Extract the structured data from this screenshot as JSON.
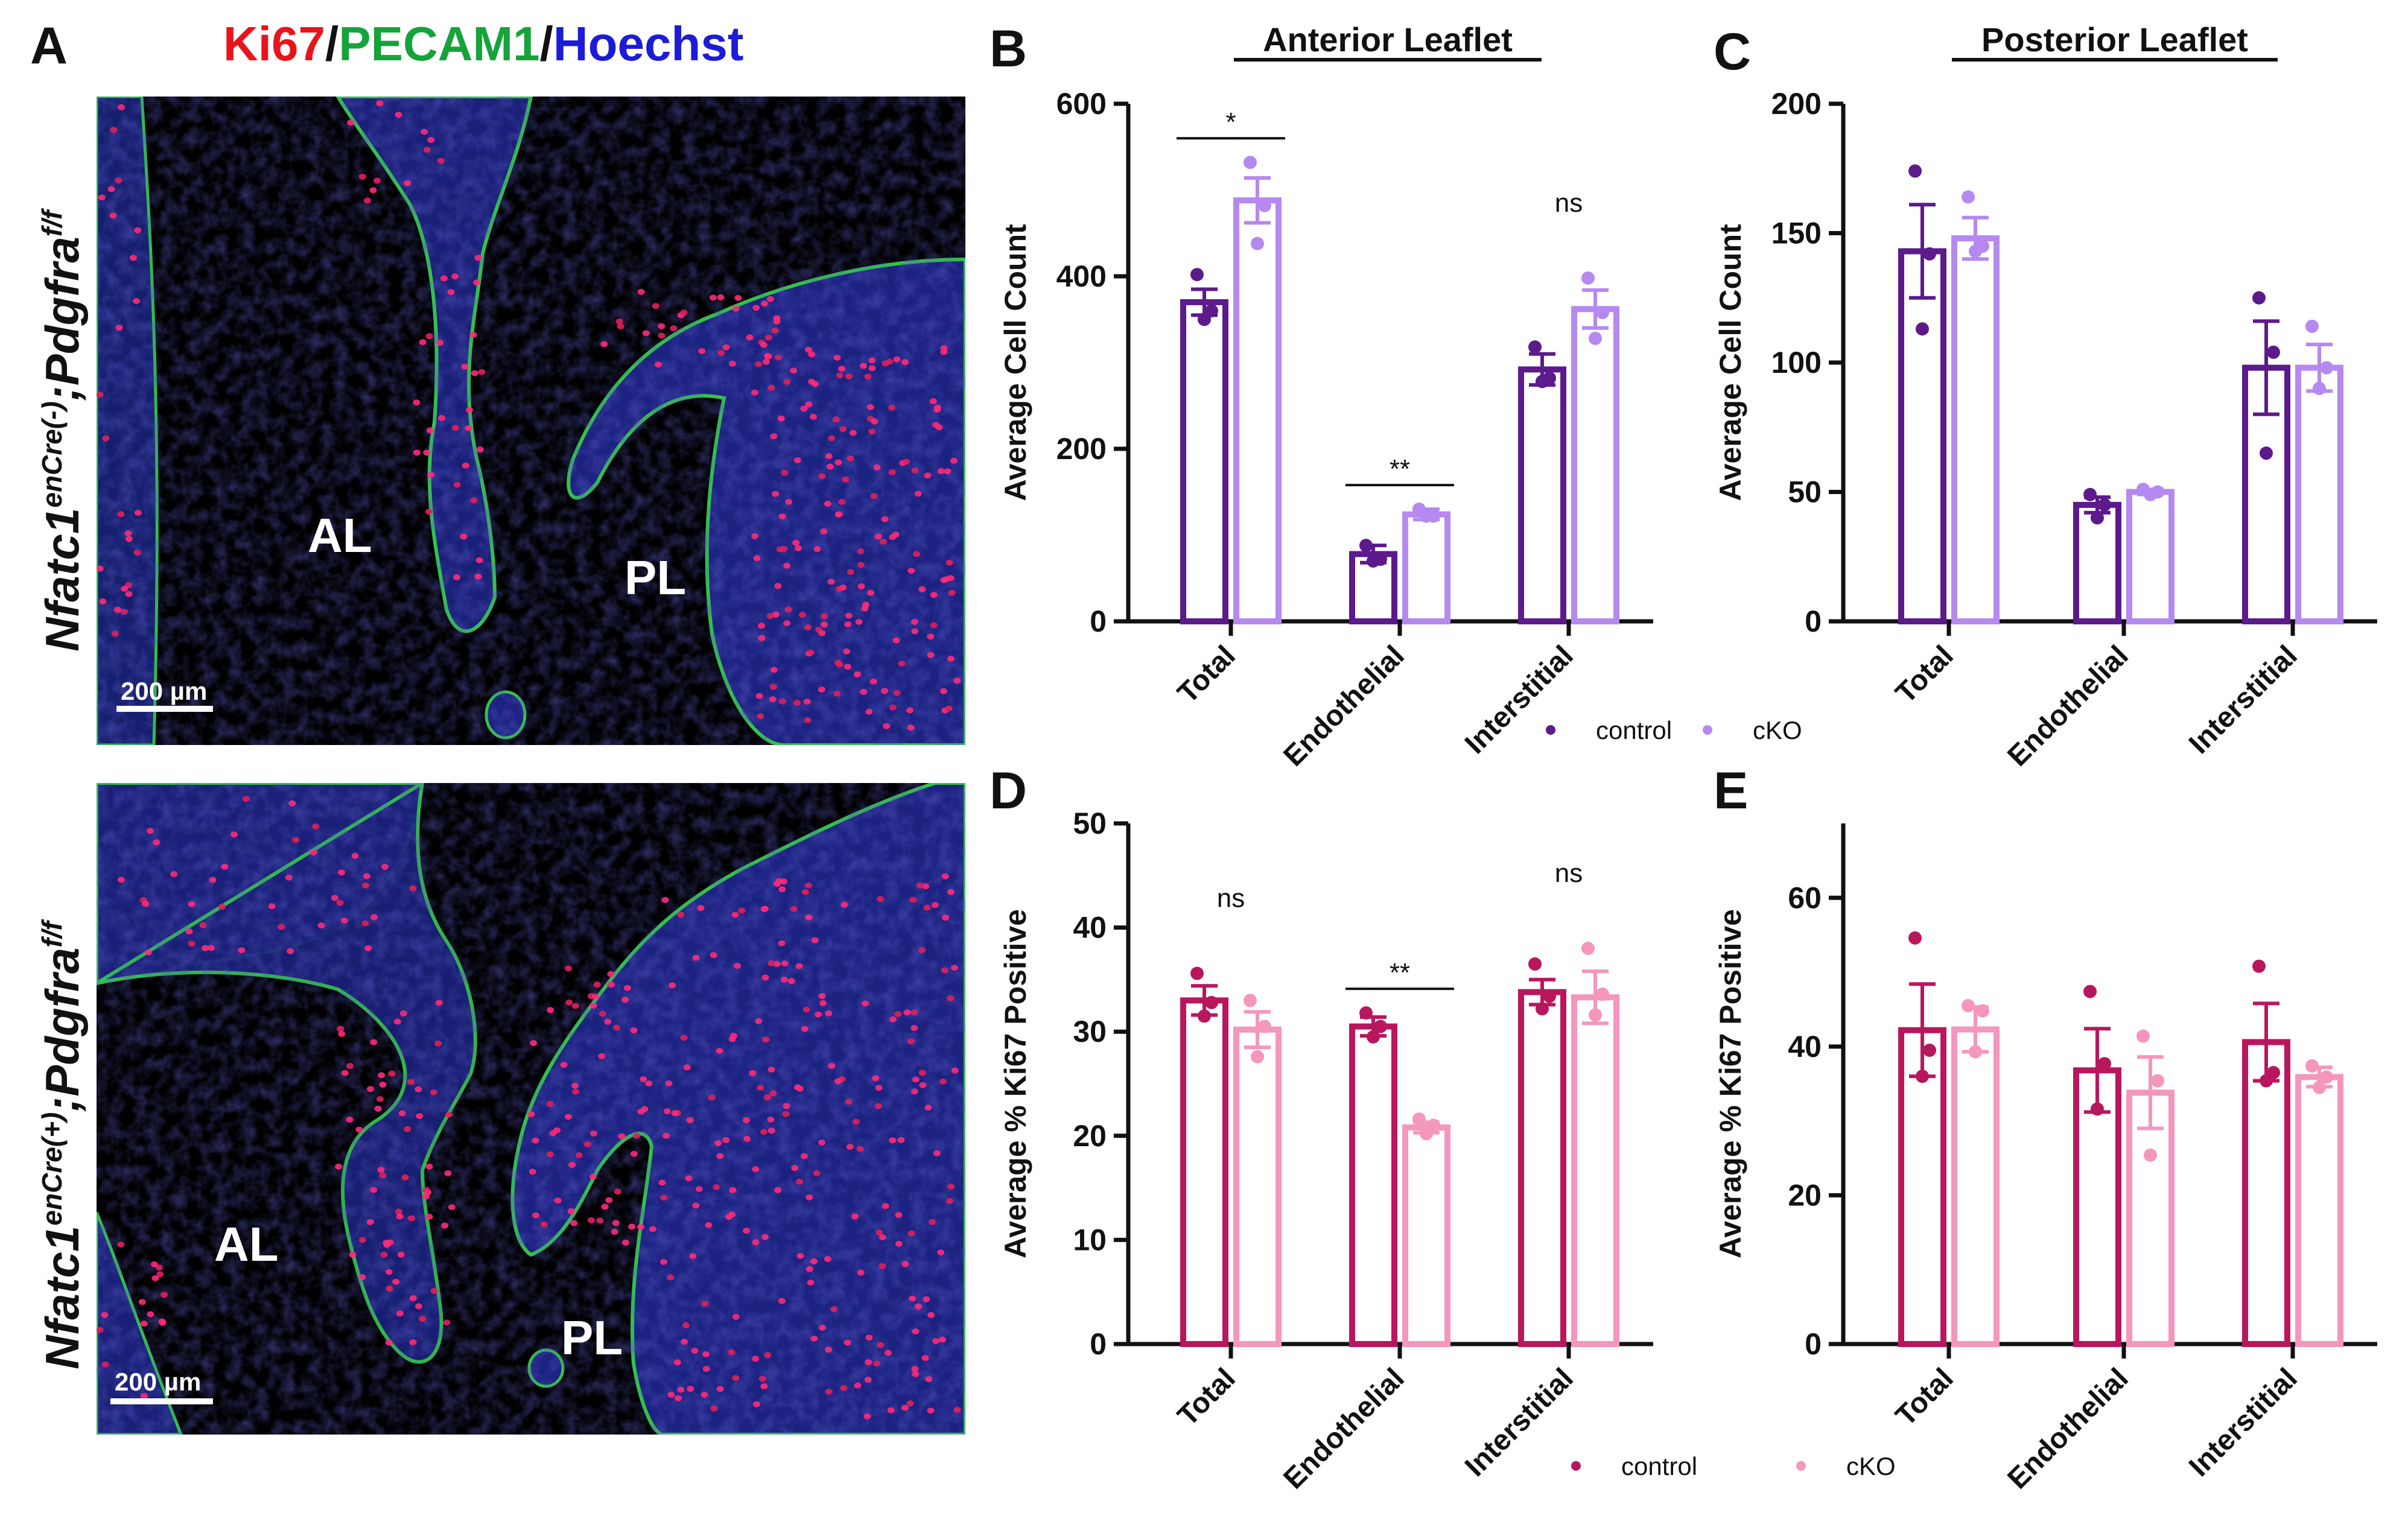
{
  "panel_a": {
    "letter": "A",
    "stain_ki67": "Ki67",
    "stain_sep1": "/",
    "stain_pecam1": "PECAM1",
    "stain_sep2": "/",
    "stain_hoechst": "Hoechst",
    "stain_colors": {
      "ki67": "#e8141c",
      "pecam1": "#16a33a",
      "hoechst": "#1c1cd8"
    },
    "top_image": {
      "genotype_base": "Nfatc1",
      "genotype_sup": "enCre(-)",
      "genotype_mid": ";Pdgfra",
      "genotype_sup2": "f/f",
      "label_al": "AL",
      "label_pl": "PL",
      "scale_bar": "200 µm"
    },
    "bottom_image": {
      "genotype_base": "Nfatc1",
      "genotype_sup": "enCre(+)",
      "genotype_mid": ";Pdgfra",
      "genotype_sup2": "f/f",
      "label_al": "AL",
      "label_pl": "PL",
      "scale_bar": "200 µm"
    }
  },
  "chart_data": [
    {
      "panel": "B",
      "type": "bar",
      "title": "Anterior Leaflet",
      "ylabel": "Average Cell Count",
      "ylim": [
        0,
        600
      ],
      "yticks": [
        0,
        200,
        400,
        600
      ],
      "categories": [
        "Total",
        "Endothelial",
        "Interstitial"
      ],
      "series": [
        {
          "name": "control",
          "color": "#5c1a8a",
          "values": [
            370,
            78,
            292
          ],
          "sem": [
            15,
            10,
            18
          ],
          "points": [
            [
              402,
              360,
              350
            ],
            [
              88,
              72,
              70
            ],
            [
              318,
              282,
              278
            ]
          ]
        },
        {
          "name": "cKO",
          "color": "#b589f0",
          "values": [
            488,
            124,
            362
          ],
          "sem": [
            26,
            6,
            22
          ],
          "points": [
            [
              532,
              482,
              438
            ],
            [
              130,
              122,
              122
            ],
            [
              398,
              358,
              328
            ]
          ]
        }
      ],
      "significance": [
        {
          "category": "Total",
          "label": "*",
          "bracket": true
        },
        {
          "category": "Endothelial",
          "label": "**",
          "bracket": true
        },
        {
          "category": "Interstitial",
          "label": "ns",
          "bracket": false
        }
      ],
      "legend": {
        "entries": [
          "control",
          "cKO"
        ],
        "placement": "bottom"
      }
    },
    {
      "panel": "C",
      "type": "bar",
      "title": "Posterior Leaflet",
      "ylabel": "Average Cell Count",
      "ylim": [
        0,
        200
      ],
      "yticks": [
        0,
        50,
        100,
        150,
        200
      ],
      "categories": [
        "Total",
        "Endothelial",
        "Interstitial"
      ],
      "series": [
        {
          "name": "control",
          "color": "#5c1a8a",
          "values": [
            143,
            45,
            98
          ],
          "sem": [
            18,
            3,
            18
          ],
          "points": [
            [
              174,
              142,
              113
            ],
            [
              49,
              45,
              40
            ],
            [
              125,
              104,
              65
            ]
          ]
        },
        {
          "name": "cKO",
          "color": "#b589f0",
          "values": [
            148,
            50,
            98
          ],
          "sem": [
            8,
            1,
            9
          ],
          "points": [
            [
              164,
              145,
              143
            ],
            [
              51,
              50,
              49
            ],
            [
              114,
              98,
              90
            ]
          ]
        }
      ],
      "significance": [],
      "legend": null
    },
    {
      "panel": "D",
      "type": "bar",
      "title": "",
      "ylabel": "Average % Ki67 Positive",
      "ylim": [
        0,
        50
      ],
      "yticks": [
        0,
        10,
        20,
        30,
        40,
        50
      ],
      "categories": [
        "Total",
        "Endothelial",
        "Interstitial"
      ],
      "series": [
        {
          "name": "control",
          "color": "#b8175e",
          "values": [
            33.0,
            30.5,
            33.8
          ],
          "sem": [
            1.4,
            0.9,
            1.2
          ],
          "points": [
            [
              35.6,
              32.8,
              31.5
            ],
            [
              31.8,
              30.5,
              29.5
            ],
            [
              36.5,
              33.4,
              32.2
            ]
          ]
        },
        {
          "name": "cKO",
          "color": "#f596bc",
          "values": [
            30.2,
            20.8,
            33.3
          ],
          "sem": [
            1.7,
            0.5,
            2.5
          ],
          "points": [
            [
              33.0,
              30.5,
              27.6
            ],
            [
              21.6,
              21.0,
              20.2
            ],
            [
              38.0,
              33.6,
              31.6
            ]
          ]
        }
      ],
      "significance": [
        {
          "category": "Total",
          "label": "ns",
          "bracket": false
        },
        {
          "category": "Endothelial",
          "label": "**",
          "bracket": true
        },
        {
          "category": "Interstitial",
          "label": "ns",
          "bracket": false
        }
      ],
      "legend": {
        "entries": [
          "control",
          "cKO"
        ],
        "placement": "bottom"
      }
    },
    {
      "panel": "E",
      "type": "bar",
      "title": "",
      "ylabel": "Average % Ki67 Positive",
      "ylim": [
        0,
        70
      ],
      "yticks": [
        0,
        20,
        40,
        60
      ],
      "categories": [
        "Total",
        "Endothelial",
        "Interstitial"
      ],
      "series": [
        {
          "name": "control",
          "color": "#b8175e",
          "values": [
            42.2,
            36.8,
            40.6
          ],
          "sem": [
            6.2,
            5.6,
            5.2
          ],
          "points": [
            [
              54.6,
              39.5,
              36.0
            ],
            [
              47.4,
              37.7,
              31.6
            ],
            [
              50.8,
              36.5,
              35.4
            ]
          ]
        },
        {
          "name": "cKO",
          "color": "#f596bc",
          "values": [
            42.3,
            33.8,
            35.9
          ],
          "sem": [
            3.0,
            4.8,
            1.3
          ],
          "points": [
            [
              45.5,
              44.8,
              39.3
            ],
            [
              41.4,
              35.4,
              25.4
            ],
            [
              37.4,
              35.9,
              34.5
            ]
          ]
        }
      ],
      "significance": [],
      "legend": null
    }
  ]
}
